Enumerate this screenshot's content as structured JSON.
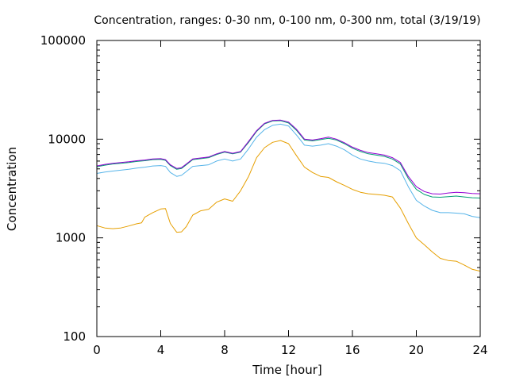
{
  "chart_data": {
    "type": "line",
    "title": "Concentration, ranges: 0-30 nm, 0-100 nm, 0-300 nm, total (3/19/19)",
    "xlabel": "Time [hour]",
    "ylabel": "Concentration",
    "xlim": [
      0,
      24
    ],
    "ylim": [
      100,
      100000
    ],
    "y_scale": "log",
    "grid": false,
    "x_ticks": [
      0,
      4,
      8,
      12,
      16,
      20,
      24
    ],
    "x_tick_labels": [
      "0",
      "4",
      "8",
      "12",
      "16",
      "20",
      "24"
    ],
    "y_ticks": [
      100,
      1000,
      10000,
      100000
    ],
    "y_tick_labels": [
      "100",
      "1000",
      "10000",
      "100000"
    ],
    "series": [
      {
        "color": "#e69f00",
        "x": [
          0,
          0.5,
          1,
          1.5,
          2,
          2.5,
          2.8,
          3,
          3.5,
          4,
          4.3,
          4.6,
          5,
          5.3,
          5.6,
          6,
          6.5,
          7,
          7.5,
          8,
          8.5,
          9,
          9.5,
          10,
          10.5,
          11,
          11.5,
          12,
          12.5,
          13,
          13.5,
          14,
          14.5,
          15,
          15.5,
          16,
          16.5,
          17,
          17.5,
          18,
          18.5,
          19,
          19.5,
          20,
          20.5,
          21,
          21.5,
          22,
          22.5,
          23,
          23.5,
          24
        ],
        "y": [
          1330,
          1260,
          1240,
          1260,
          1320,
          1390,
          1420,
          1620,
          1800,
          1960,
          1980,
          1400,
          1140,
          1150,
          1300,
          1700,
          1880,
          1950,
          2300,
          2480,
          2350,
          3000,
          4200,
          6500,
          8200,
          9300,
          9700,
          9000,
          6800,
          5200,
          4600,
          4200,
          4100,
          3700,
          3400,
          3100,
          2900,
          2800,
          2750,
          2700,
          2600,
          2000,
          1400,
          1000,
          850,
          720,
          620,
          590,
          580,
          530,
          480,
          460
        ]
      },
      {
        "color": "#56b4e9",
        "x": [
          0,
          0.5,
          1,
          1.5,
          2,
          2.5,
          3,
          3.5,
          4,
          4.3,
          4.6,
          5,
          5.3,
          5.6,
          6,
          6.5,
          7,
          7.5,
          8,
          8.5,
          9,
          9.5,
          10,
          10.5,
          11,
          11.5,
          12,
          12.5,
          13,
          13.5,
          14,
          14.5,
          15,
          15.5,
          16,
          16.5,
          17,
          17.5,
          18,
          18.5,
          19,
          19.5,
          20,
          20.5,
          21,
          21.5,
          22,
          22.5,
          23,
          23.5,
          24
        ],
        "y": [
          4500,
          4650,
          4750,
          4850,
          4950,
          5100,
          5200,
          5350,
          5400,
          5300,
          4600,
          4200,
          4300,
          4700,
          5300,
          5400,
          5500,
          6000,
          6300,
          6000,
          6300,
          8000,
          10500,
          12500,
          13800,
          14200,
          13600,
          11000,
          8700,
          8500,
          8700,
          9000,
          8500,
          7800,
          6900,
          6300,
          6000,
          5800,
          5700,
          5400,
          4800,
          3300,
          2400,
          2100,
          1900,
          1800,
          1800,
          1780,
          1750,
          1650,
          1600
        ]
      },
      {
        "color": "#009e73",
        "x": [
          0,
          0.5,
          1,
          1.5,
          2,
          2.5,
          3,
          3.5,
          4,
          4.3,
          4.6,
          5,
          5.3,
          5.6,
          6,
          6.5,
          7,
          7.5,
          8,
          8.5,
          9,
          9.5,
          10,
          10.5,
          11,
          11.5,
          12,
          12.5,
          13,
          13.5,
          14,
          14.5,
          15,
          15.5,
          16,
          16.5,
          17,
          17.5,
          18,
          18.5,
          19,
          19.5,
          20,
          20.5,
          21,
          21.5,
          22,
          22.5,
          23,
          23.5,
          24
        ],
        "y": [
          5250,
          5450,
          5600,
          5700,
          5800,
          5950,
          6050,
          6200,
          6250,
          6100,
          5400,
          4950,
          5050,
          5500,
          6200,
          6350,
          6500,
          7000,
          7400,
          7100,
          7400,
          9300,
          12000,
          14300,
          15300,
          15400,
          14600,
          12300,
          9800,
          9600,
          9900,
          10200,
          9800,
          9000,
          8100,
          7500,
          7100,
          6900,
          6700,
          6300,
          5600,
          4000,
          3100,
          2750,
          2600,
          2580,
          2620,
          2650,
          2600,
          2550,
          2530
        ]
      },
      {
        "color": "#9400d3",
        "x": [
          0,
          0.5,
          1,
          1.5,
          2,
          2.5,
          3,
          3.5,
          4,
          4.3,
          4.6,
          5,
          5.3,
          5.6,
          6,
          6.5,
          7,
          7.5,
          8,
          8.5,
          9,
          9.5,
          10,
          10.5,
          11,
          11.5,
          12,
          12.5,
          13,
          13.5,
          14,
          14.5,
          15,
          15.5,
          16,
          16.5,
          17,
          17.5,
          18,
          18.5,
          19,
          19.5,
          20,
          20.5,
          21,
          21.5,
          22,
          22.5,
          23,
          23.5,
          24
        ],
        "y": [
          5350,
          5550,
          5700,
          5800,
          5900,
          6050,
          6150,
          6300,
          6350,
          6200,
          5500,
          5050,
          5150,
          5600,
          6300,
          6450,
          6600,
          7100,
          7500,
          7200,
          7500,
          9500,
          12200,
          14500,
          15500,
          15600,
          14900,
          12600,
          10000,
          9800,
          10100,
          10500,
          10000,
          9200,
          8300,
          7700,
          7300,
          7100,
          6900,
          6500,
          5800,
          4200,
          3300,
          2950,
          2800,
          2780,
          2850,
          2900,
          2870,
          2820,
          2800
        ]
      }
    ]
  }
}
